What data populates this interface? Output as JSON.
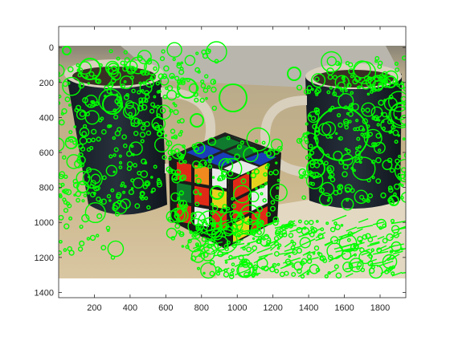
{
  "figure": {
    "background": "#ffffff",
    "feature_color": "#00ff00",
    "x_ticks": [
      200,
      400,
      600,
      800,
      1000,
      1200,
      1400,
      1600,
      1800
    ],
    "y_ticks": [
      0,
      200,
      400,
      600,
      800,
      1000,
      1200,
      1400
    ],
    "x_range": [
      0,
      1944
    ],
    "y_range": [
      -120,
      1430
    ],
    "image_extent": {
      "width": 1944,
      "height": 1296
    }
  },
  "photo": {
    "description_colors": {
      "table": "#c9b48c",
      "mug_dark": "#1d2530",
      "mug_rim": "#d8cfbd",
      "cube_blue": "#1a3db8",
      "cube_red": "#e02a18",
      "cube_green": "#0f7a2e",
      "cube_orange": "#f08a1e",
      "cube_yellow": "#e6d21e",
      "cube_white": "#e8e8e8"
    }
  }
}
